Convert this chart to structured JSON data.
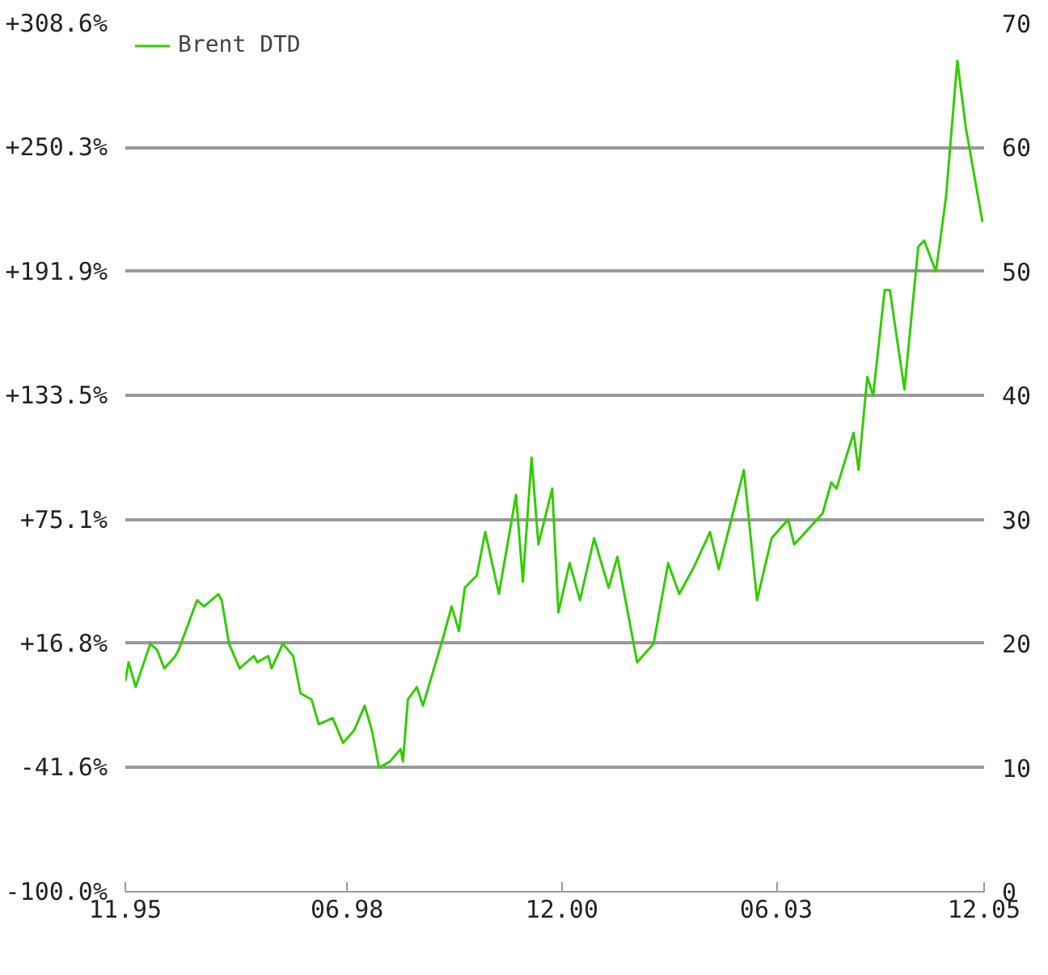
{
  "chart_data": {
    "type": "line",
    "legend": "top left",
    "grid": "y",
    "marker": "none",
    "line_style": "solid",
    "xlim": [
      "1995-11",
      "2005-11"
    ],
    "xticks": [
      {
        "value": "1995-11",
        "label": "11.95"
      },
      {
        "value": "1998-06",
        "label": "06.98"
      },
      {
        "value": "2000-12",
        "label": "12.00"
      },
      {
        "value": "2003-06",
        "label": "06.03"
      },
      {
        "value": "2005-11",
        "label": "12.05"
      }
    ],
    "ylim": [
      -100,
      308.6
    ],
    "yticks": [
      {
        "value": -100,
        "label": "-100.0%"
      },
      {
        "value": -41.6,
        "label": "-41.6%"
      },
      {
        "value": 16.8,
        "label": "+16.8%"
      },
      {
        "value": 75.1,
        "label": "+75.1%"
      },
      {
        "value": 133.5,
        "label": "+133.5%"
      },
      {
        "value": 191.9,
        "label": "+191.9%"
      },
      {
        "value": 250.3,
        "label": "+250.3%"
      },
      {
        "value": 308.6,
        "label": "+308.6%"
      }
    ],
    "y2lim": [
      0,
      70
    ],
    "y2ticks": [
      0,
      10,
      20,
      30,
      40,
      50,
      60,
      70
    ],
    "series": [
      {
        "name": "Brent DTD",
        "color": "#33cc00",
        "axis": "y2",
        "x": [
          "1995-11-01",
          "1995-11-15",
          "1995-12-15",
          "1996-02-15",
          "1996-03-15",
          "1996-04-15",
          "1996-06-01",
          "1996-06-15",
          "1996-09-01",
          "1996-10-01",
          "1996-12-01",
          "1996-12-15",
          "1997-01-15",
          "1997-03-01",
          "1997-05-01",
          "1997-05-15",
          "1997-07-01",
          "1997-07-15",
          "1997-09-01",
          "1997-10-15",
          "1997-11-15",
          "1998-01-01",
          "1998-02-01",
          "1998-04-01",
          "1998-05-15",
          "1998-07-01",
          "1998-08-15",
          "1998-09-15",
          "1998-10-15",
          "1998-12-01",
          "1999-01-15",
          "1999-01-25",
          "1999-02-15",
          "1999-03-25",
          "1999-04-20",
          "1999-07-15",
          "1999-08-20",
          "1999-09-20",
          "1999-10-15",
          "1999-12-05",
          "2000-01-10",
          "2000-03-08",
          "2000-05-20",
          "2000-06-18",
          "2000-07-25",
          "2000-08-23",
          "2000-10-21",
          "2000-11-16",
          "2001-01-03",
          "2001-02-16",
          "2001-04-17",
          "2001-06-18",
          "2001-07-25",
          "2001-10-17",
          "2001-12-26",
          "2002-02-26",
          "2002-04-14",
          "2002-06-11",
          "2002-08-23",
          "2002-09-29",
          "2003-01-14",
          "2003-03-11",
          "2003-05-12",
          "2003-07-21",
          "2003-08-16",
          "2003-12-15",
          "2004-01-21",
          "2004-02-12",
          "2004-04-25",
          "2004-05-16",
          "2004-06-22",
          "2004-07-17",
          "2004-09-04",
          "2004-09-26",
          "2004-11-27",
          "2005-01-25",
          "2005-02-19",
          "2005-04-10",
          "2005-05-23",
          "2005-07-10",
          "2005-08-16",
          "2005-10-25"
        ],
        "values": [
          17,
          18.5,
          16.5,
          20,
          19.5,
          18,
          19,
          19.5,
          23.5,
          23,
          24,
          23.5,
          20,
          18,
          19,
          18.5,
          19,
          18,
          20,
          19,
          16,
          15.5,
          13.5,
          14,
          12,
          13,
          15,
          13,
          10,
          10.5,
          11.5,
          10.5,
          15.5,
          16.5,
          15,
          20.5,
          23,
          21,
          24.5,
          25.5,
          29,
          24,
          32,
          25,
          35,
          28,
          32.5,
          22.5,
          26.5,
          23.5,
          28.5,
          24.5,
          27,
          18.5,
          20,
          26.5,
          24,
          26,
          29,
          26,
          34,
          23.5,
          28.5,
          30,
          28,
          30.5,
          33,
          32.5,
          37,
          34,
          41.5,
          40,
          48.5,
          48.5,
          40.5,
          52,
          52.5,
          50,
          56,
          67,
          61.5,
          54
        ]
      }
    ]
  }
}
